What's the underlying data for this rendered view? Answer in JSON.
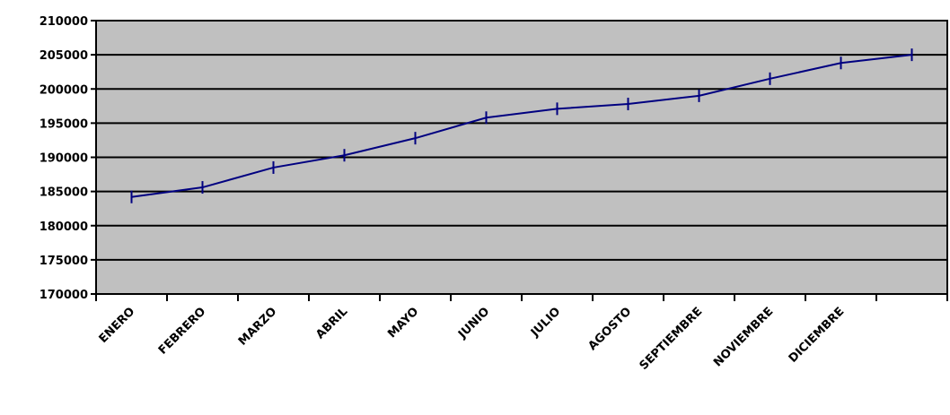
{
  "chart_data": {
    "type": "line",
    "categories": [
      "ENERO",
      "FEBRERO",
      "MARZO",
      "ABRIL",
      "MAYO",
      "JUNIO",
      "JULIO",
      "AGOSTO",
      "SEPTIEMBRE",
      "NOVIEMBRE",
      "DICIEMBRE",
      null
    ],
    "series": [
      {
        "color": "#000080",
        "values": [
          184200,
          185600,
          188500,
          190300,
          192800,
          195800,
          197100,
          197800,
          199000,
          201500,
          203800,
          205000
        ]
      }
    ],
    "ylim": [
      170000,
      210000
    ],
    "yticks": [
      170000,
      175000,
      180000,
      185000,
      190000,
      195000,
      200000,
      205000,
      210000
    ],
    "grid": true
  }
}
